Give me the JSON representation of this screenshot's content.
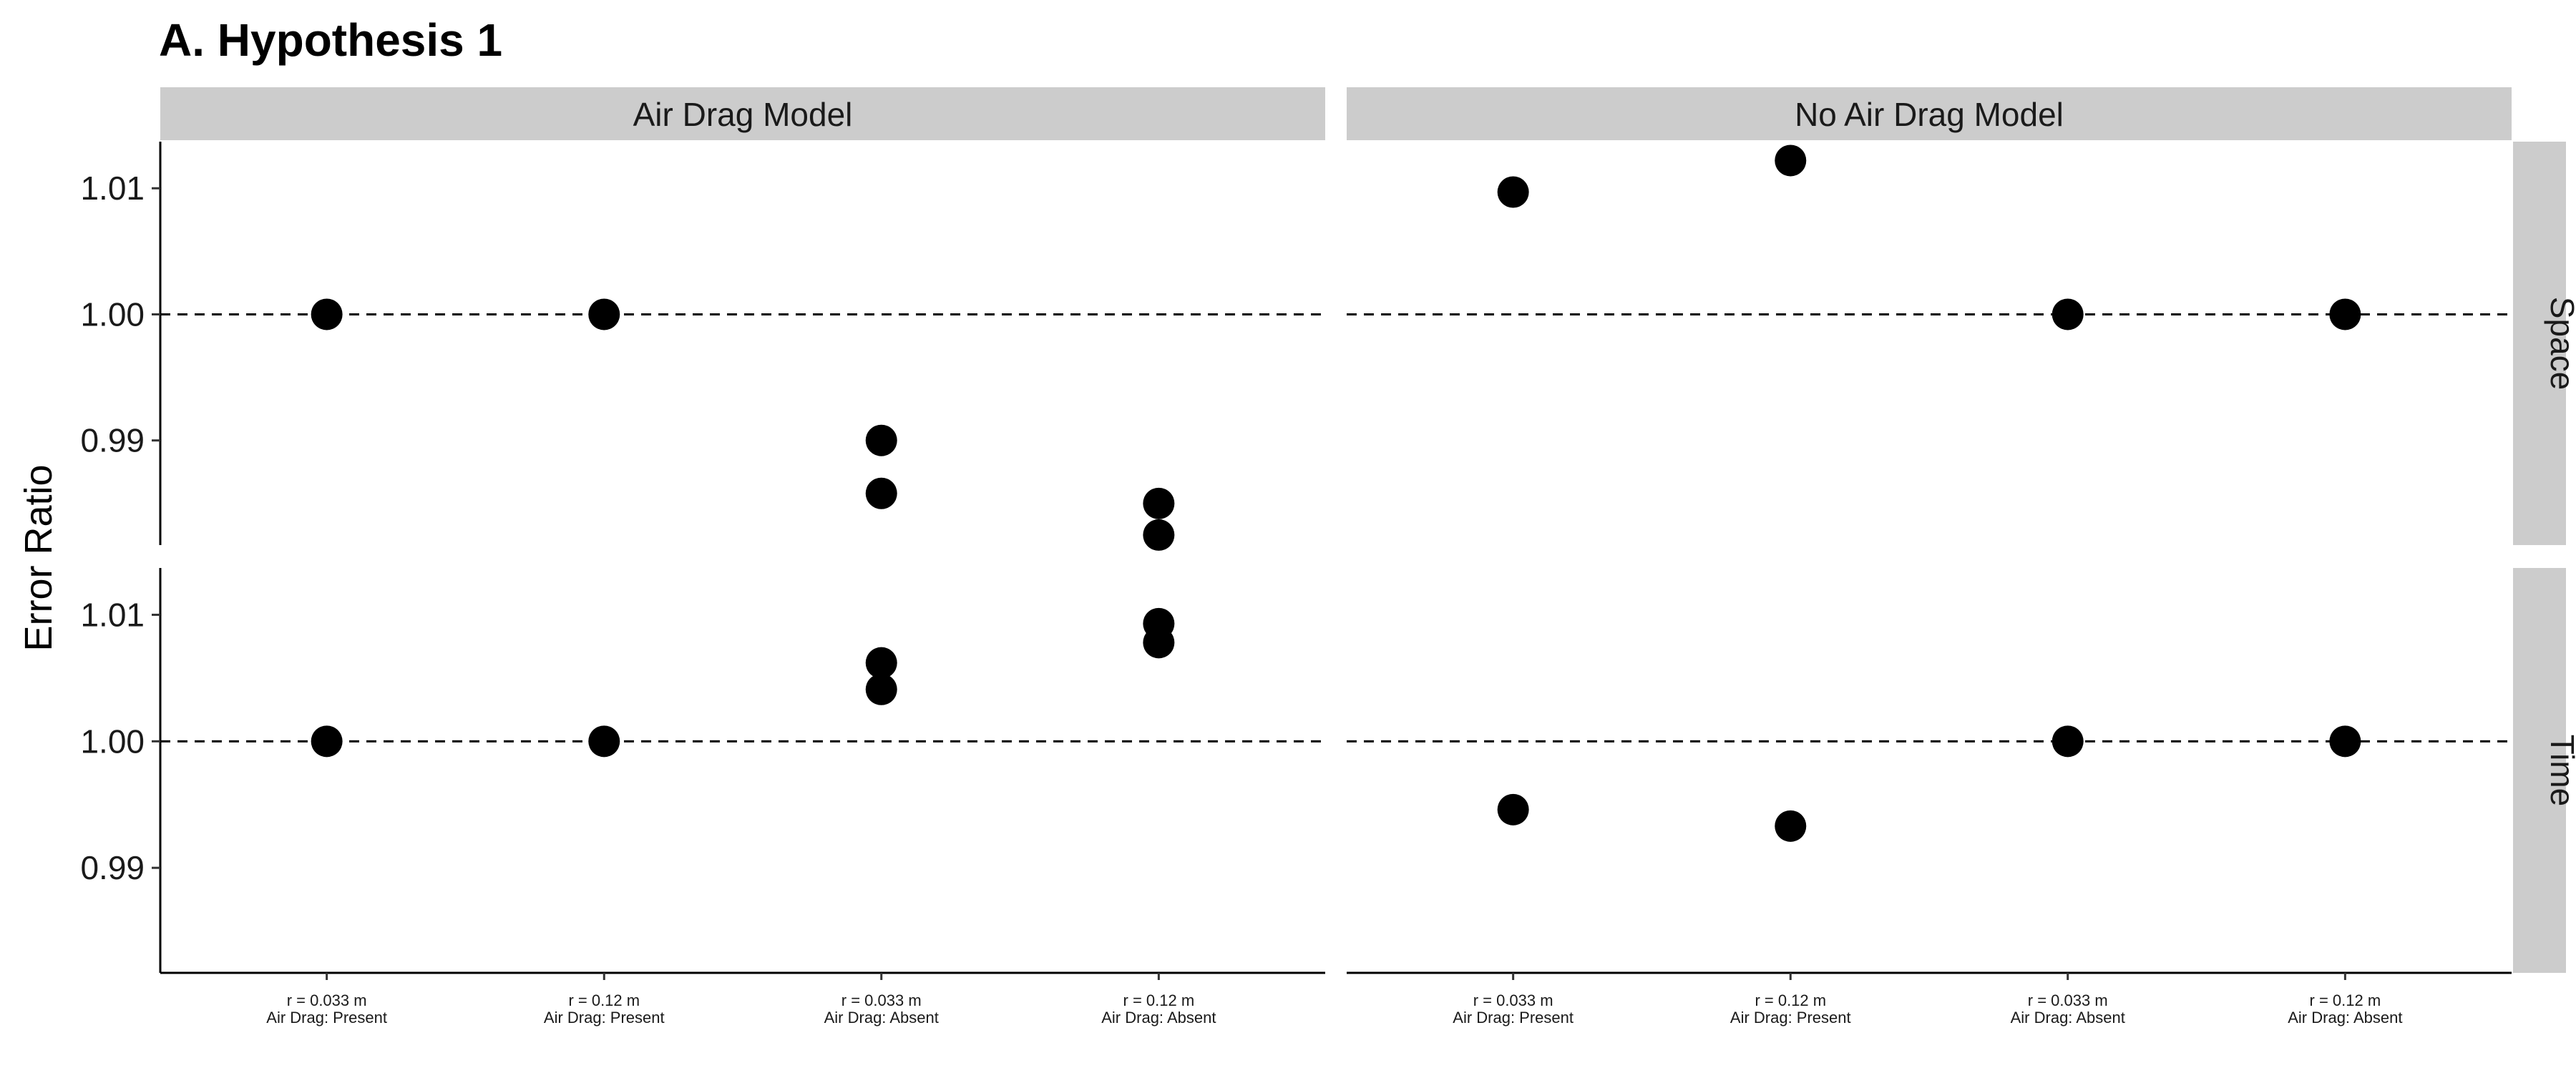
{
  "chart_data": {
    "type": "scatter",
    "title": "A. Hypothesis 1",
    "xlabel": "",
    "ylabel": "Error Ratio",
    "facet_columns": [
      "Air Drag Model",
      "No Air Drag Model"
    ],
    "facet_rows": [
      "Space",
      "Time"
    ],
    "categories": [
      [
        "r = 0.033 m",
        "Air Drag: Present"
      ],
      [
        "r = 0.12 m",
        "Air Drag: Present"
      ],
      [
        "r = 0.033 m",
        "Air Drag: Absent"
      ],
      [
        "r = 0.12 m",
        "Air Drag: Absent"
      ]
    ],
    "ylim": [
      0.9817,
      1.0137
    ],
    "yticks": [
      0.99,
      1.0,
      1.01
    ],
    "yticklabels": [
      "0.99",
      "1.00",
      "1.01"
    ],
    "reference_line": 1.0,
    "grid": false,
    "panels": [
      {
        "row": "Space",
        "col": "Air Drag Model",
        "points": [
          [
            0,
            1.0
          ],
          [
            1,
            1.0
          ],
          [
            2,
            0.99
          ],
          [
            2,
            0.9858
          ],
          [
            3,
            0.985
          ],
          [
            3,
            0.9825
          ]
        ]
      },
      {
        "row": "Space",
        "col": "No Air Drag Model",
        "points": [
          [
            0,
            1.0097
          ],
          [
            1,
            1.0122
          ],
          [
            2,
            1.0
          ],
          [
            3,
            1.0
          ]
        ]
      },
      {
        "row": "Time",
        "col": "Air Drag Model",
        "points": [
          [
            0,
            1.0
          ],
          [
            1,
            1.0
          ],
          [
            2,
            1.0062
          ],
          [
            2,
            1.0041
          ],
          [
            3,
            1.0093
          ],
          [
            3,
            1.0078
          ]
        ]
      },
      {
        "row": "Time",
        "col": "No Air Drag Model",
        "points": [
          [
            0,
            0.9946
          ],
          [
            1,
            0.9933
          ],
          [
            2,
            1.0
          ],
          [
            3,
            1.0
          ]
        ]
      }
    ],
    "point_color": "#000000",
    "strip_color": "#cccccc"
  }
}
